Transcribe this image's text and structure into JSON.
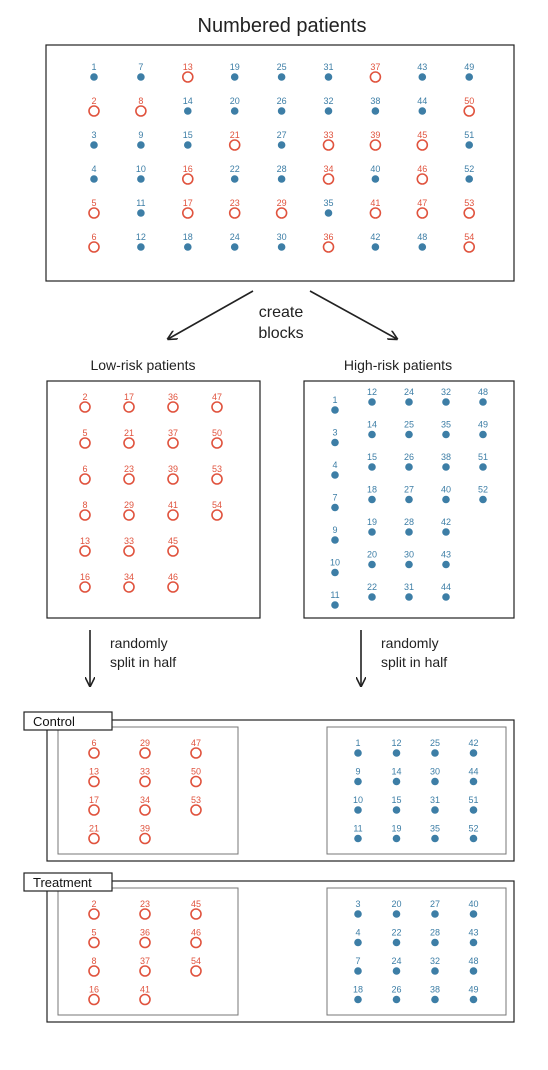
{
  "title": "Numbered patients",
  "create_blocks": [
    "create",
    "blocks"
  ],
  "low_risk_label": "Low-risk patients",
  "high_risk_label": "High-risk patients",
  "split_label": [
    "randomly",
    "split in half"
  ],
  "control_label": "Control",
  "treatment_label": "Treatment",
  "colors": {
    "low_risk": "#e0533e",
    "high_risk": "#3d7ea6",
    "line": "#222222"
  },
  "numbered_patients": {
    "low_risk": [
      2,
      5,
      6,
      8,
      13,
      16,
      17,
      21,
      23,
      29,
      33,
      34,
      36,
      37,
      39,
      41,
      45,
      46,
      47,
      50,
      53,
      54
    ],
    "high_risk": [
      1,
      3,
      4,
      7,
      9,
      10,
      11,
      12,
      14,
      15,
      18,
      19,
      20,
      22,
      24,
      25,
      26,
      27,
      28,
      30,
      31,
      32,
      35,
      38,
      40,
      42,
      43,
      44,
      48,
      49,
      51,
      52
    ]
  },
  "blocks": {
    "low_risk_columns": [
      [
        2,
        5,
        6,
        8,
        13,
        16
      ],
      [
        17,
        21,
        23,
        29,
        33,
        34
      ],
      [
        36,
        37,
        39,
        41,
        45,
        46
      ],
      [
        47,
        50,
        53,
        54
      ]
    ],
    "high_risk_columns": [
      [
        1,
        3,
        4,
        7,
        9,
        10,
        11
      ],
      [
        12,
        14,
        15,
        18,
        19,
        20,
        22
      ],
      [
        24,
        25,
        26,
        27,
        28,
        30,
        31
      ],
      [
        32,
        35,
        38,
        40,
        42,
        43,
        44
      ],
      [
        48,
        49,
        51,
        52
      ]
    ]
  },
  "control": {
    "low_risk_columns": [
      [
        6,
        13,
        17,
        21
      ],
      [
        29,
        33,
        34,
        39
      ],
      [
        47,
        50,
        53
      ]
    ],
    "high_risk_columns": [
      [
        1,
        9,
        10,
        11
      ],
      [
        12,
        14,
        15,
        19
      ],
      [
        25,
        30,
        31,
        35
      ],
      [
        42,
        44,
        51,
        52
      ]
    ]
  },
  "treatment": {
    "low_risk_columns": [
      [
        2,
        5,
        8,
        16
      ],
      [
        23,
        36,
        37,
        41
      ],
      [
        45,
        46,
        54
      ]
    ],
    "high_risk_columns": [
      [
        3,
        4,
        7,
        18
      ],
      [
        20,
        22,
        24,
        26
      ],
      [
        27,
        28,
        32,
        38
      ],
      [
        40,
        43,
        48,
        49
      ]
    ]
  }
}
